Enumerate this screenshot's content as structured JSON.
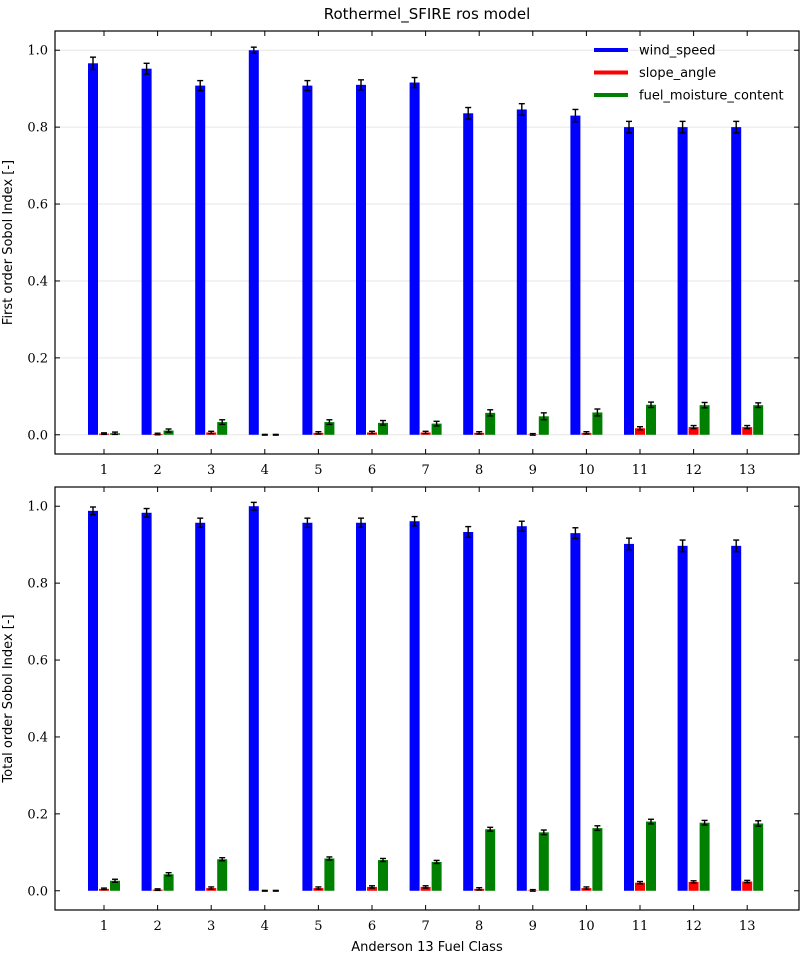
{
  "figure": {
    "title": "Rothermel_SFIRE ros model"
  },
  "legend": {
    "placement": "top-right",
    "entries": [
      {
        "label": "wind_speed",
        "color": "#0000ff"
      },
      {
        "label": "slope_angle",
        "color": "#ff0000"
      },
      {
        "label": "fuel_moisture_content",
        "color": "#008000"
      }
    ]
  },
  "chart_data": [
    {
      "type": "bar",
      "title": "Rothermel_SFIRE ros model",
      "ylabel": "First order Sobol Index [-]",
      "xlabel": "",
      "ylim": [
        -0.05,
        1.05
      ],
      "yticks": [
        "0.0",
        "0.2",
        "0.4",
        "0.6",
        "0.8",
        "1.0"
      ],
      "grid": true,
      "legend": "top-right",
      "error_bars": true,
      "categories": [
        "1",
        "2",
        "3",
        "4",
        "5",
        "6",
        "7",
        "8",
        "9",
        "10",
        "11",
        "12",
        "13"
      ],
      "series": [
        {
          "name": "wind_speed",
          "color": "#0000ff",
          "values": [
            0.966,
            0.952,
            0.908,
            1.0,
            0.908,
            0.91,
            0.916,
            0.836,
            0.846,
            0.83,
            0.8,
            0.8,
            0.8
          ],
          "errors": [
            0.016,
            0.014,
            0.013,
            0.008,
            0.013,
            0.013,
            0.013,
            0.015,
            0.015,
            0.016,
            0.015,
            0.015,
            0.015
          ]
        },
        {
          "name": "slope_angle",
          "color": "#ff0000",
          "values": [
            0.003,
            0.002,
            0.006,
            0.0,
            0.005,
            0.006,
            0.006,
            0.005,
            0.001,
            0.005,
            0.017,
            0.02,
            0.02
          ],
          "errors": [
            0.002,
            0.002,
            0.003,
            0.001,
            0.003,
            0.003,
            0.003,
            0.003,
            0.002,
            0.003,
            0.004,
            0.004,
            0.004
          ]
        },
        {
          "name": "fuel_moisture_content",
          "color": "#008000",
          "values": [
            0.004,
            0.011,
            0.033,
            0.0,
            0.033,
            0.031,
            0.029,
            0.057,
            0.048,
            0.058,
            0.078,
            0.077,
            0.077
          ],
          "errors": [
            0.003,
            0.004,
            0.006,
            0.001,
            0.006,
            0.006,
            0.006,
            0.008,
            0.009,
            0.009,
            0.007,
            0.007,
            0.006
          ]
        }
      ]
    },
    {
      "type": "bar",
      "title": "",
      "ylabel": "Total order Sobol Index [-]",
      "xlabel": "Anderson 13 Fuel Class",
      "ylim": [
        -0.05,
        1.05
      ],
      "yticks": [
        "0.0",
        "0.2",
        "0.4",
        "0.6",
        "0.8",
        "1.0"
      ],
      "grid": false,
      "error_bars": true,
      "categories": [
        "1",
        "2",
        "3",
        "4",
        "5",
        "6",
        "7",
        "8",
        "9",
        "10",
        "11",
        "12",
        "13"
      ],
      "series": [
        {
          "name": "wind_speed",
          "color": "#0000ff",
          "values": [
            0.988,
            0.983,
            0.957,
            1.0,
            0.957,
            0.957,
            0.961,
            0.933,
            0.948,
            0.93,
            0.902,
            0.897,
            0.897
          ],
          "errors": [
            0.01,
            0.011,
            0.012,
            0.01,
            0.012,
            0.012,
            0.012,
            0.014,
            0.013,
            0.014,
            0.015,
            0.015,
            0.015
          ]
        },
        {
          "name": "slope_angle",
          "color": "#ff0000",
          "values": [
            0.005,
            0.003,
            0.007,
            0.0,
            0.007,
            0.01,
            0.01,
            0.005,
            0.001,
            0.007,
            0.021,
            0.023,
            0.024
          ],
          "errors": [
            0.002,
            0.002,
            0.003,
            0.001,
            0.003,
            0.003,
            0.003,
            0.003,
            0.002,
            0.003,
            0.003,
            0.003,
            0.003
          ]
        },
        {
          "name": "fuel_moisture_content",
          "color": "#008000",
          "values": [
            0.026,
            0.043,
            0.082,
            0.0,
            0.084,
            0.08,
            0.075,
            0.16,
            0.152,
            0.163,
            0.18,
            0.177,
            0.175
          ],
          "errors": [
            0.004,
            0.004,
            0.004,
            0.001,
            0.004,
            0.004,
            0.004,
            0.005,
            0.006,
            0.006,
            0.006,
            0.006,
            0.007
          ]
        }
      ]
    }
  ]
}
